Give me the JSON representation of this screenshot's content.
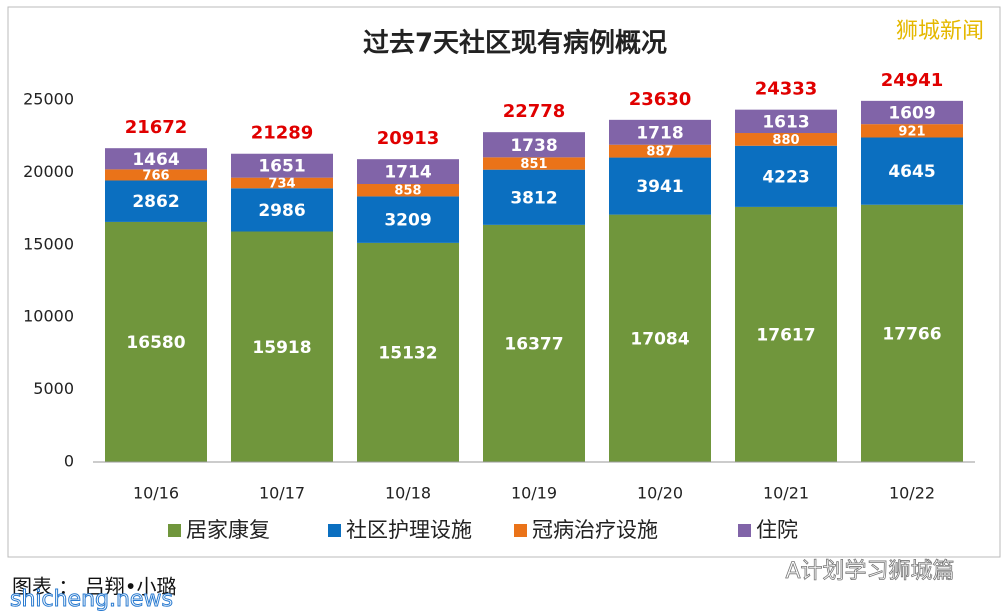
{
  "chart_data": {
    "type": "stacked-bar",
    "title": "过去7天社区现有病例概况",
    "categories": [
      "10/16",
      "10/17",
      "10/18",
      "10/19",
      "10/20",
      "10/21",
      "10/22"
    ],
    "series": [
      {
        "name": "居家康复",
        "color": "#70963c",
        "values": [
          16580,
          15918,
          15132,
          16377,
          17084,
          17617,
          17766
        ]
      },
      {
        "name": "社区护理设施",
        "color": "#0b6fc0",
        "values": [
          2862,
          2986,
          3209,
          3812,
          3941,
          4223,
          4645
        ]
      },
      {
        "name": "冠病治疗设施",
        "color": "#ea7319",
        "values": [
          766,
          734,
          858,
          851,
          887,
          880,
          921
        ]
      },
      {
        "name": "住院",
        "color": "#8164a8",
        "values": [
          1464,
          1651,
          1714,
          1738,
          1718,
          1613,
          1609
        ]
      }
    ],
    "totals": [
      21672,
      21289,
      20913,
      22778,
      23630,
      24333,
      24941
    ],
    "ylim": [
      0,
      25000
    ],
    "yticks": [
      0,
      5000,
      10000,
      15000,
      20000,
      25000
    ],
    "grid": false,
    "annotations": [
      "狮城新闻",
      "图表 ： 吕翔•小璐",
      "shicheng.news",
      "A计划学习狮城篇"
    ]
  }
}
